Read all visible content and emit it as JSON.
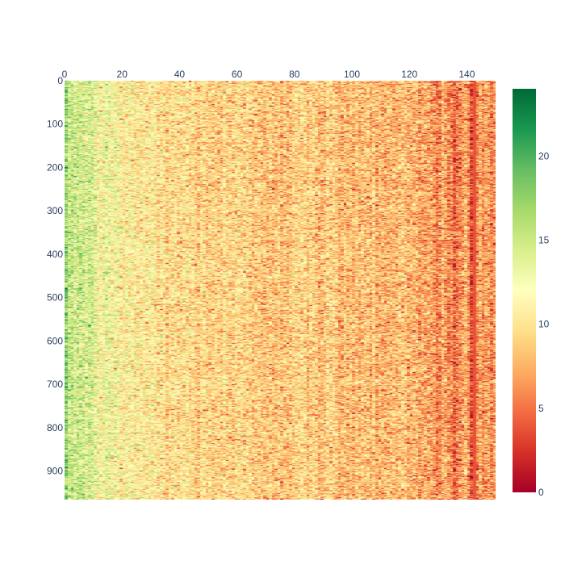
{
  "chart_data": {
    "type": "heatmap",
    "title": "",
    "xlabel": "",
    "ylabel": "",
    "x_axis_position": "top",
    "y_axis_reversed": true,
    "xlim": [
      0,
      150
    ],
    "ylim": [
      0,
      966
    ],
    "n_columns": 150,
    "n_rows": 966,
    "x_ticks": [
      "0",
      "20",
      "40",
      "60",
      "80",
      "100",
      "120",
      "140"
    ],
    "y_ticks": [
      "0",
      "100",
      "200",
      "300",
      "400",
      "500",
      "600",
      "700",
      "800",
      "900"
    ],
    "colorscale": "RdYlGn",
    "zlim": [
      0,
      24
    ],
    "colorbar_ticks": [
      "0",
      "5",
      "10",
      "15",
      "20"
    ],
    "colorscale_stops": [
      [
        0.0,
        "#a50026"
      ],
      [
        0.1,
        "#d73027"
      ],
      [
        0.2,
        "#f46d43"
      ],
      [
        0.3,
        "#fdae61"
      ],
      [
        0.4,
        "#fee08b"
      ],
      [
        0.5,
        "#ffffbf"
      ],
      [
        0.6,
        "#d9ef8b"
      ],
      [
        0.7,
        "#a6d96a"
      ],
      [
        0.8,
        "#66bd63"
      ],
      [
        0.9,
        "#1a9850"
      ],
      [
        1.0,
        "#006837"
      ]
    ],
    "column_profile": [
      [
        0,
        15.5
      ],
      [
        5,
        14.8
      ],
      [
        10,
        13.5
      ],
      [
        13,
        12.3
      ],
      [
        20,
        11.5
      ],
      [
        30,
        10.5
      ],
      [
        40,
        9.8
      ],
      [
        60,
        9.2
      ],
      [
        80,
        8.9
      ],
      [
        100,
        8.5
      ],
      [
        120,
        8.0
      ],
      [
        128,
        7.6
      ],
      [
        129,
        4.8
      ],
      [
        130,
        5.5
      ],
      [
        131,
        7.5
      ],
      [
        135,
        5.0
      ],
      [
        136,
        3.6
      ],
      [
        137,
        6.2
      ],
      [
        140,
        7.2
      ],
      [
        141,
        6.8
      ],
      [
        142,
        0.4
      ],
      [
        143,
        6.5
      ],
      [
        150,
        6.8
      ]
    ],
    "value_noise": 2.4
  }
}
